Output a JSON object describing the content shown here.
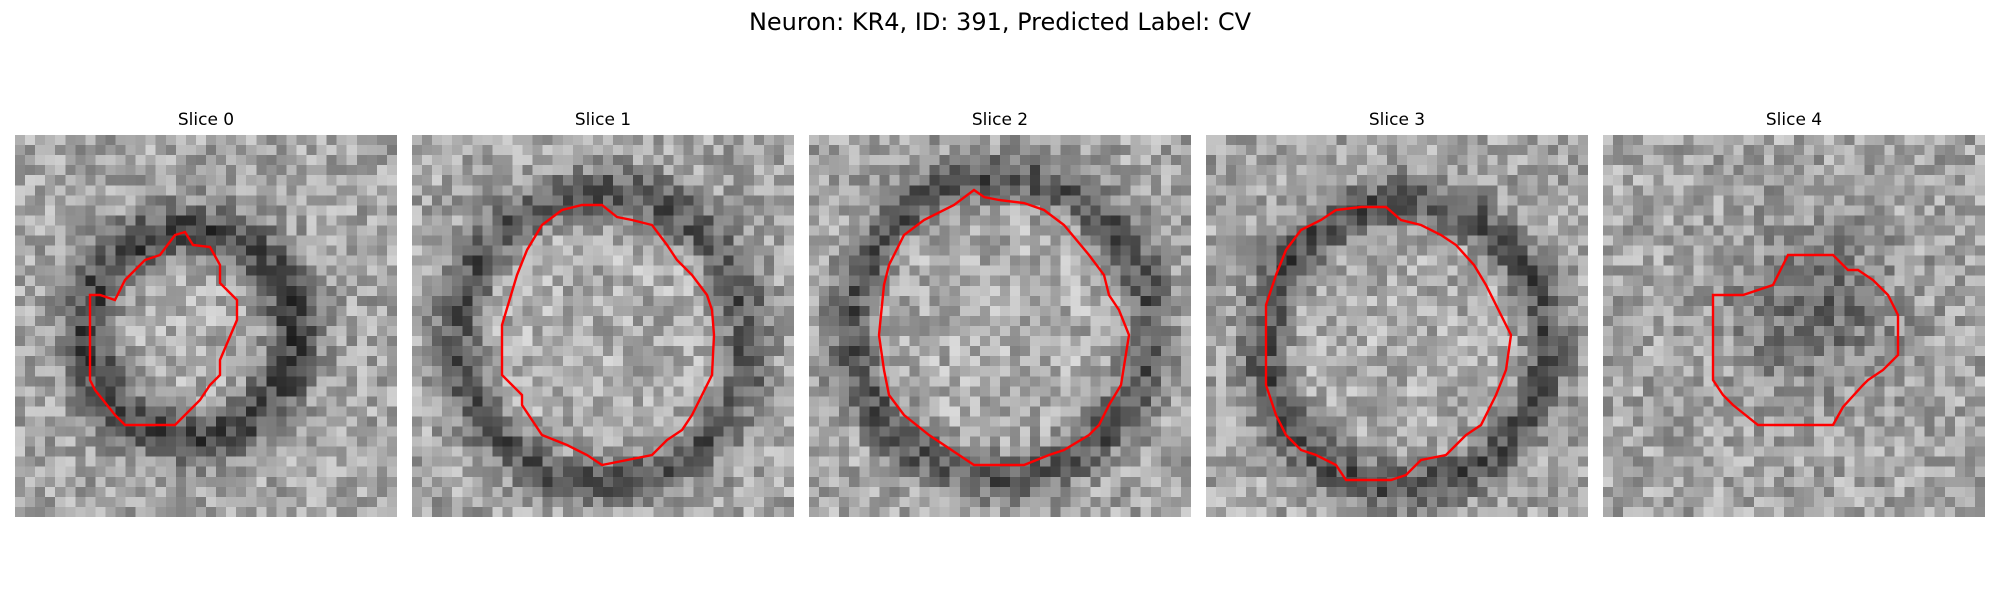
{
  "figure": {
    "title": "Neuron: KR4, ID: 391, Predicted Label: CV"
  },
  "panels": [
    {
      "title": "Slice 0",
      "contour_color": "#ff0000",
      "image": "grayscale noisy microscopy crop with a dark ring-shaped vesicle membrane"
    },
    {
      "title": "Slice 1",
      "contour_color": "#ff0000",
      "image": "grayscale noisy microscopy crop with a dark ring-shaped vesicle membrane"
    },
    {
      "title": "Slice 2",
      "contour_color": "#ff0000",
      "image": "grayscale noisy microscopy crop with a dark ring-shaped vesicle membrane"
    },
    {
      "title": "Slice 3",
      "contour_color": "#ff0000",
      "image": "grayscale noisy microscopy crop with a dark ring-shaped vesicle membrane"
    },
    {
      "title": "Slice 4",
      "contour_color": "#ff0000",
      "image": "grayscale noisy microscopy crop with a dark diffuse blob"
    }
  ]
}
